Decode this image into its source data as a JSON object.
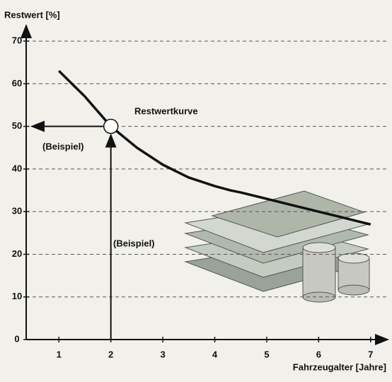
{
  "chart_data": {
    "type": "line",
    "y_label": "Restwert [%]",
    "x_label": "Fahrzeugalter [Jahre]",
    "x": [
      1,
      1.5,
      2,
      2.5,
      3,
      3.5,
      4,
      4.3,
      4.5,
      5,
      5.5,
      6,
      6.5,
      7
    ],
    "series": [
      {
        "name": "Restwertkurve",
        "color": "#111111",
        "values": [
          63,
          57,
          50,
          45,
          41,
          38,
          36,
          35,
          34.5,
          33,
          31.5,
          30,
          28.5,
          27
        ]
      }
    ],
    "example": {
      "x": 2,
      "y": 50,
      "label_x": "(Beispiel)",
      "label_y": "(Beispiel)"
    },
    "xlim": [
      0.37,
      7.33
    ],
    "ylim": [
      0,
      73
    ],
    "xticks": [
      1,
      2,
      3,
      4,
      5,
      6,
      7
    ],
    "yticks": [
      0,
      10,
      20,
      30,
      40,
      50,
      60,
      70
    ],
    "grid": true
  }
}
